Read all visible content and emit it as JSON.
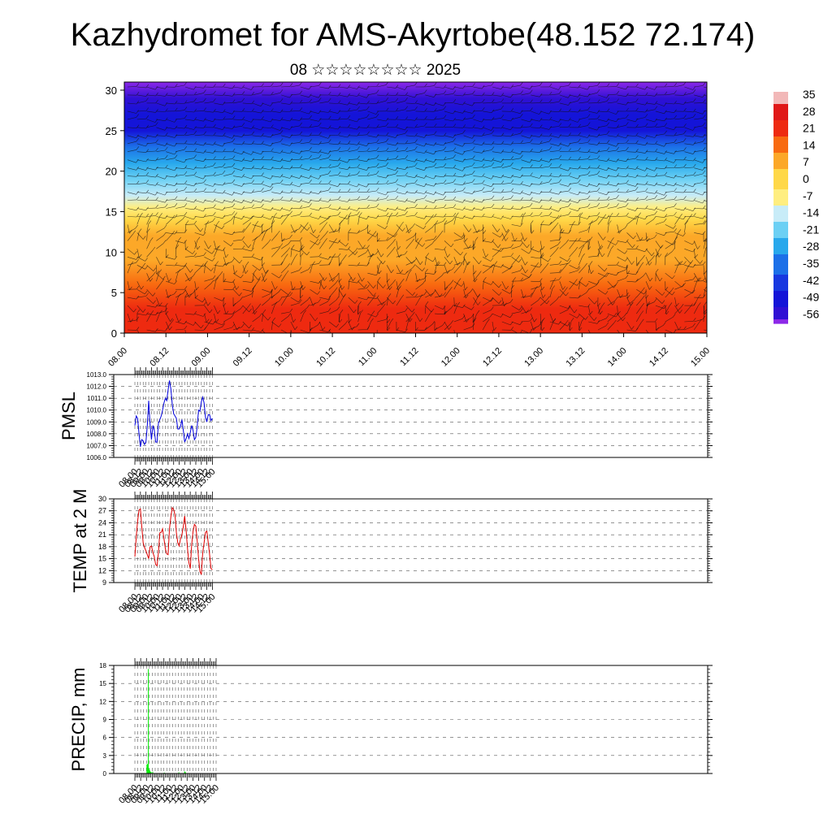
{
  "header": {
    "title": "Kazhydromet for AMS-Akyrtobe(48.152 72.174)",
    "subtitle": "08 ☆☆☆☆☆☆☆☆ 2025"
  },
  "time_labels": [
    "08.00",
    "08.12",
    "09.00",
    "09.12",
    "10.00",
    "10.12",
    "11.00",
    "11.12",
    "12.00",
    "12.12",
    "13.00",
    "13.12",
    "14.00",
    "14.12",
    "15.00"
  ],
  "chart_data": [
    {
      "type": "heatmap",
      "x_categories": [
        "08.00",
        "08.12",
        "09.00",
        "09.12",
        "10.00",
        "10.12",
        "11.00",
        "11.12",
        "12.00",
        "12.12",
        "13.00",
        "13.12",
        "14.00",
        "14.12",
        "15.00"
      ],
      "ylim": [
        0,
        31
      ],
      "y_ticks": [
        0,
        5,
        10,
        15,
        20,
        25,
        30
      ],
      "colorbar": {
        "labels": [
          "35",
          "28",
          "21",
          "14",
          "7",
          "0",
          "-7",
          "-14",
          "-21",
          "-28",
          "-35",
          "-42",
          "-49",
          "-56"
        ],
        "stops": [
          {
            "t": 35,
            "color": "#f2b8b8"
          },
          {
            "t": 28,
            "color": "#e01818"
          },
          {
            "t": 21,
            "color": "#ee2a10"
          },
          {
            "t": 14,
            "color": "#f86a10"
          },
          {
            "t": 7,
            "color": "#fca828"
          },
          {
            "t": 0,
            "color": "#ffd848"
          },
          {
            "t": -7,
            "color": "#ffee80"
          },
          {
            "t": -14,
            "color": "#c8ecf8"
          },
          {
            "t": -21,
            "color": "#6cd0f4"
          },
          {
            "t": -28,
            "color": "#28a8ec"
          },
          {
            "t": -35,
            "color": "#1c70e8"
          },
          {
            "t": -42,
            "color": "#1838e0"
          },
          {
            "t": -49,
            "color": "#1414d8"
          },
          {
            "t": -56,
            "color": "#3010d4"
          },
          {
            "t": -60,
            "color": "#8c28e8"
          }
        ]
      },
      "vertical_profile": [
        {
          "h": 0,
          "t": 20
        },
        {
          "h": 3,
          "t": 18
        },
        {
          "h": 6,
          "t": 13
        },
        {
          "h": 9,
          "t": 9
        },
        {
          "h": 12,
          "t": 5
        },
        {
          "h": 14,
          "t": 1
        },
        {
          "h": 15.5,
          "t": -5
        },
        {
          "h": 17,
          "t": -14
        },
        {
          "h": 19,
          "t": -22
        },
        {
          "h": 21,
          "t": -30
        },
        {
          "h": 23,
          "t": -38
        },
        {
          "h": 25,
          "t": -46
        },
        {
          "h": 27,
          "t": -50
        },
        {
          "h": 29,
          "t": -54
        },
        {
          "h": 31,
          "t": -60
        }
      ],
      "wind_barbs": true
    },
    {
      "type": "line",
      "ylabel": "PMSL",
      "ylim": [
        1006.0,
        1013.0
      ],
      "y_ticks": [
        "1006.0",
        "1007.0",
        "1008.0",
        "1009.0",
        "1010.0",
        "1011.0",
        "1012.0",
        "1013.0"
      ],
      "x_categories": [
        "08.00",
        "08.12",
        "09.00",
        "09.12",
        "10.00",
        "10.12",
        "11.00",
        "11.12",
        "12.00",
        "12.12",
        "13.00",
        "13.12",
        "14.00",
        "14.12",
        "15.00"
      ],
      "color": "#0000dd",
      "grid": true,
      "x": [
        0,
        0.25,
        0.5,
        0.75,
        1,
        1.25,
        1.5,
        1.75,
        2,
        2.25,
        2.5,
        2.75,
        3,
        3.25,
        3.5,
        3.75,
        4,
        4.25,
        4.5,
        4.75,
        5,
        5.25,
        5.5,
        5.75,
        6,
        6.25,
        6.5,
        6.75,
        7,
        7.25,
        7.5,
        7.75,
        8,
        8.25,
        8.5,
        8.75,
        9,
        9.25,
        9.5,
        9.75,
        10,
        10.25,
        10.5,
        10.75,
        11,
        11.25,
        11.5,
        11.75,
        12,
        12.25,
        12.5,
        12.75,
        13,
        13.25,
        13.5,
        13.75,
        14
      ],
      "values": [
        1008.7,
        1009.5,
        1009.3,
        1008.0,
        1006.9,
        1007.5,
        1007.4,
        1007.1,
        1007.3,
        1008.7,
        1010.8,
        1008.8,
        1007.5,
        1008.7,
        1008.3,
        1007.3,
        1007.3,
        1008.9,
        1009.2,
        1009.5,
        1010.0,
        1010.6,
        1011.0,
        1010.8,
        1011.7,
        1012.5,
        1011.8,
        1010.5,
        1009.7,
        1009.5,
        1009.3,
        1008.4,
        1008.4,
        1008.6,
        1009.2,
        1008.3,
        1007.3,
        1007.6,
        1008.0,
        1007.6,
        1008.1,
        1008.7,
        1008.3,
        1007.5,
        1007.7,
        1008.6,
        1010.0,
        1009.9,
        1010.7,
        1011.1,
        1010.6,
        1009.4,
        1009.0,
        1009.6,
        1009.6,
        1009.1,
        1009.3
      ]
    },
    {
      "type": "line",
      "ylabel": "TEMP at 2 M",
      "ylim": [
        9,
        30
      ],
      "y_ticks": [
        "9",
        "12",
        "15",
        "18",
        "21",
        "24",
        "27",
        "30"
      ],
      "x_categories": [
        "08.00",
        "08.12",
        "09.00",
        "09.12",
        "10.00",
        "10.12",
        "11.00",
        "11.12",
        "12.00",
        "12.12",
        "13.00",
        "13.12",
        "14.00",
        "14.12",
        "15.00"
      ],
      "color": "#dd0000",
      "grid": true,
      "x": [
        0,
        0.25,
        0.5,
        0.75,
        1,
        1.25,
        1.5,
        1.75,
        2,
        2.25,
        2.5,
        2.75,
        3,
        3.25,
        3.5,
        3.75,
        4,
        4.25,
        4.5,
        4.75,
        5,
        5.25,
        5.5,
        5.75,
        6,
        6.25,
        6.5,
        6.75,
        7,
        7.25,
        7.5,
        7.75,
        8,
        8.25,
        8.5,
        8.75,
        9,
        9.25,
        9.5,
        9.75,
        10,
        10.25,
        10.5,
        10.75,
        11,
        11.25,
        11.5,
        11.75,
        12,
        12.25,
        12.5,
        12.75,
        13,
        13.25,
        13.5,
        13.75,
        14
      ],
      "values": [
        15.5,
        20.5,
        24.5,
        27.2,
        27.5,
        23.0,
        19.0,
        17.8,
        17.0,
        16.0,
        15.0,
        18.0,
        18.2,
        16.5,
        15.5,
        13.5,
        13.2,
        16.5,
        21.5,
        21.6,
        22.5,
        20.0,
        17.5,
        16.2,
        16.0,
        22.5,
        25.5,
        27.8,
        27.3,
        26.0,
        21.5,
        19.0,
        18.2,
        20.0,
        21.0,
        23.0,
        25.7,
        22.0,
        17.5,
        14.0,
        12.5,
        18.5,
        21.8,
        23.6,
        23.2,
        19.5,
        15.0,
        11.8,
        11.0,
        16.5,
        19.0,
        21.6,
        21.9,
        19.0,
        16.0,
        12.5,
        12.2
      ]
    },
    {
      "type": "bar",
      "ylabel": "PRECIP, mm",
      "ylim": [
        0,
        18
      ],
      "y_ticks": [
        "0",
        "3",
        "6",
        "9",
        "12",
        "15",
        "18"
      ],
      "x_categories": [
        "08.00",
        "08.12",
        "09.00",
        "09.12",
        "10.00",
        "10.12",
        "11.00",
        "11.12",
        "12.00",
        "12.12",
        "13.00",
        "13.12",
        "14.00",
        "14.12",
        "15.00"
      ],
      "color": "#00ee00",
      "grid": true,
      "bar_width_days": 0.125,
      "bars": [
        {
          "x": 2.0,
          "value": 1.5
        },
        {
          "x": 2.125,
          "value": 1.6
        },
        {
          "x": 2.25,
          "value": 17.4
        },
        {
          "x": 2.375,
          "value": 0.8
        },
        {
          "x": 2.5,
          "value": 0.5
        },
        {
          "x": 2.625,
          "value": 0.3
        },
        {
          "x": 2.75,
          "value": 0.2
        },
        {
          "x": 3.0,
          "value": 0.3
        },
        {
          "x": 5.0,
          "value": 0.15
        },
        {
          "x": 7.5,
          "value": 0.2
        },
        {
          "x": 8.5,
          "value": 0.35
        },
        {
          "x": 8.625,
          "value": 0.25
        }
      ]
    }
  ]
}
